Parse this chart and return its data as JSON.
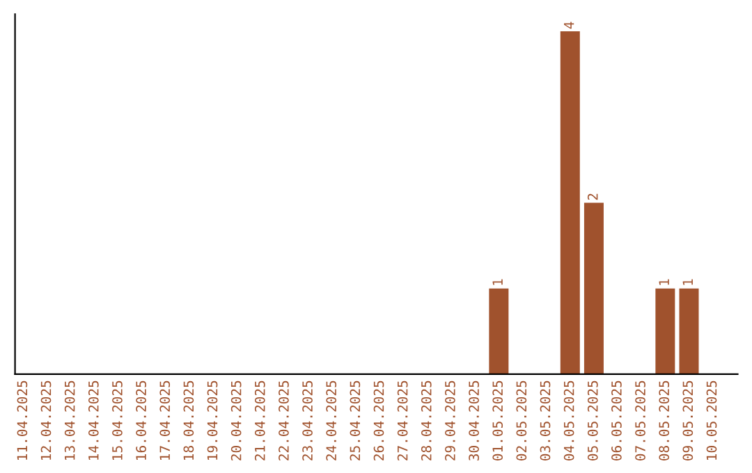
{
  "chart_data": {
    "type": "bar",
    "categories": [
      "11.04.2025",
      "12.04.2025",
      "13.04.2025",
      "14.04.2025",
      "15.04.2025",
      "16.04.2025",
      "17.04.2025",
      "18.04.2025",
      "19.04.2025",
      "20.04.2025",
      "21.04.2025",
      "22.04.2025",
      "23.04.2025",
      "24.04.2025",
      "25.04.2025",
      "26.04.2025",
      "27.04.2025",
      "28.04.2025",
      "29.04.2025",
      "30.04.2025",
      "01.05.2025",
      "02.05.2025",
      "03.05.2025",
      "04.05.2025",
      "05.05.2025",
      "06.05.2025",
      "07.05.2025",
      "08.05.2025",
      "09.05.2025",
      "10.05.2025"
    ],
    "values": [
      null,
      null,
      null,
      null,
      null,
      null,
      null,
      null,
      null,
      null,
      null,
      null,
      null,
      null,
      null,
      null,
      null,
      null,
      null,
      null,
      1,
      null,
      null,
      4,
      2,
      null,
      null,
      1,
      1,
      null
    ],
    "value_labels": [
      null,
      null,
      null,
      null,
      null,
      null,
      null,
      null,
      null,
      null,
      null,
      null,
      null,
      null,
      null,
      null,
      null,
      null,
      null,
      null,
      "1",
      null,
      null,
      "4",
      "2",
      null,
      null,
      "1",
      "1",
      null
    ],
    "color": "#a0522d",
    "grid": false,
    "legend": false
  }
}
